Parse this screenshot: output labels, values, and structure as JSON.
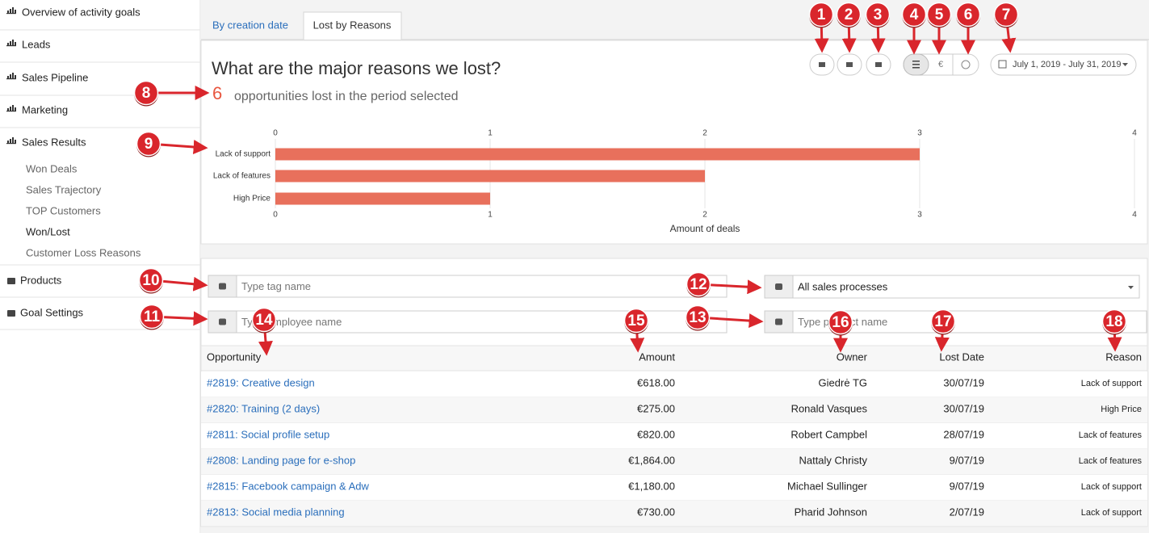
{
  "sidebar": {
    "top": [
      "Overview of activity goals",
      "Leads",
      "Sales Pipeline",
      "Marketing",
      "Sales Results"
    ],
    "subitems": [
      "Won Deals",
      "Sales Trajectory",
      "TOP Customers",
      "Won/Lost",
      "Customer Loss Reasons"
    ],
    "bottom": [
      "Products",
      "Goal Settings"
    ]
  },
  "tabs": [
    "By creation date",
    "Lost by Reasons"
  ],
  "panel": {
    "title": "What are the major reasons we lost?",
    "lost_count": 6,
    "lost_text": "opportunities lost in the period selected"
  },
  "toolbar": {
    "currency_symbol": "€",
    "date_range": "July 1, 2019 - July 31, 2019"
  },
  "chart_data": {
    "type": "bar",
    "orientation": "horizontal",
    "categories": [
      "Lack of support",
      "Lack of features",
      "High Price"
    ],
    "values": [
      3,
      2,
      1
    ],
    "color": "#e8705c",
    "xlim": [
      0,
      4
    ],
    "xticks": [
      0,
      1,
      2,
      3,
      4
    ],
    "x_label": "Amount of deals"
  },
  "filters": {
    "tag_placeholder": "Type tag name",
    "employee_placeholder": "Type employee name",
    "sales_process": "All sales processes",
    "product_placeholder": "Type product name"
  },
  "table": {
    "columns": [
      "Opportunity",
      "Amount",
      "Owner",
      "Lost Date",
      "Reason"
    ],
    "rows": [
      [
        "#2819: Creative design",
        "€618.00",
        "Giedrė TG",
        "30/07/19",
        "Lack of support"
      ],
      [
        "#2820: Training (2 days)",
        "€275.00",
        "Ronald Vasques",
        "30/07/19",
        "High Price"
      ],
      [
        "#2811: Social profile setup",
        "€820.00",
        "Robert Campbel",
        "28/07/19",
        "Lack of features"
      ],
      [
        "#2808: Landing page for e-shop",
        "€1,864.00",
        "Nattaly Christy",
        "9/07/19",
        "Lack of features"
      ],
      [
        "#2815: Facebook campaign & Adw",
        "€1,180.00",
        "Michael Sullinger",
        "9/07/19",
        "Lack of support"
      ],
      [
        "#2813: Social media planning",
        "€730.00",
        "Pharid Johnson",
        "2/07/19",
        "Lack of support"
      ]
    ]
  },
  "annotations": [
    "1",
    "2",
    "3",
    "4",
    "5",
    "6",
    "7",
    "8",
    "9",
    "10",
    "11",
    "12",
    "13",
    "14",
    "15",
    "16",
    "17",
    "18"
  ]
}
